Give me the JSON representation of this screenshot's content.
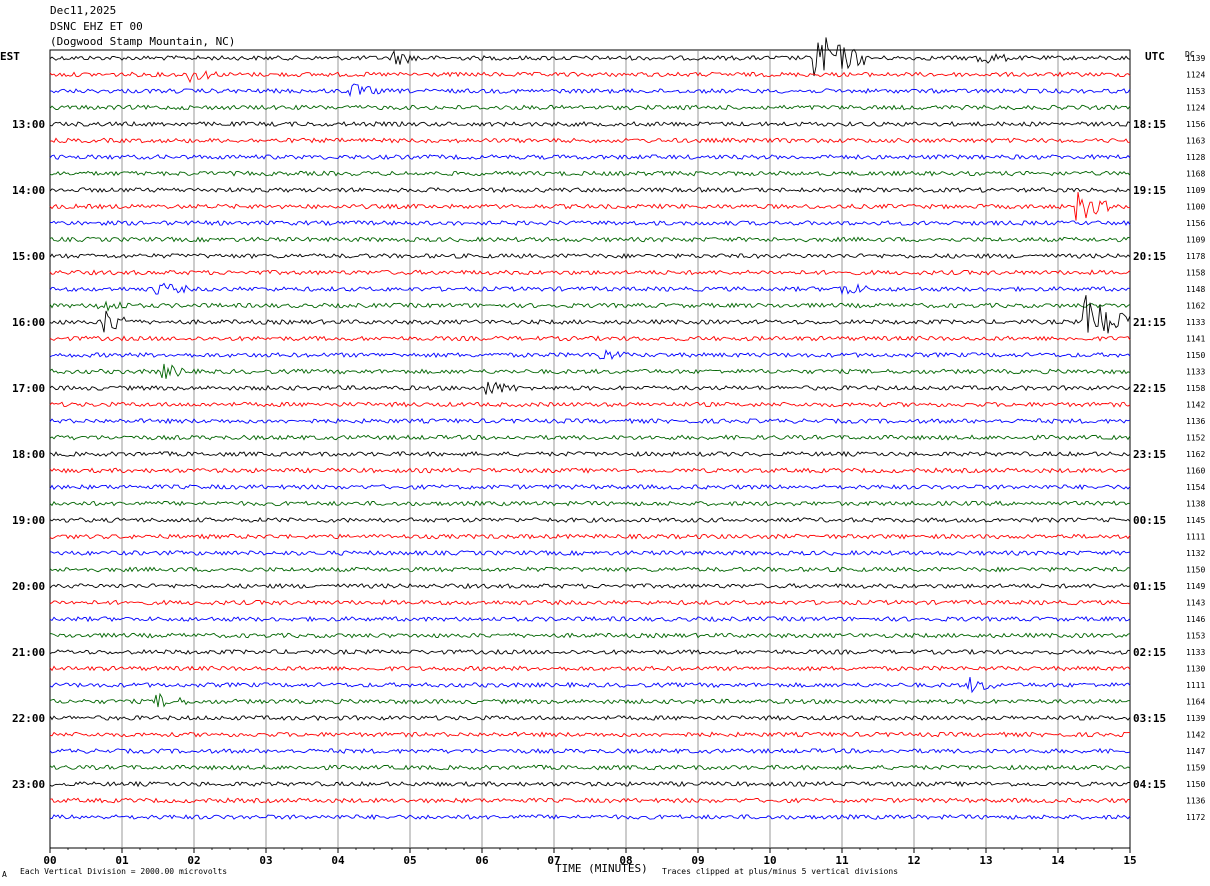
{
  "header": {
    "date": "Dec11,2025",
    "station": "DSNC EHZ ET 00",
    "location": "(Dogwood Stamp Mountain, NC)"
  },
  "left_timezone": "EST",
  "right_timezone": "UTC",
  "dc_label": "DC",
  "footer": {
    "scale_note": "Each Vertical Division = 2000.00 microvolts",
    "xlabel": "TIME (MINUTES)",
    "clip_note": "Traces clipped at plus/minus 5 vertical divisions",
    "corner_mark": "A"
  },
  "colors": {
    "trace_cycle": [
      "#000000",
      "#ff0000",
      "#0000ff",
      "#006400"
    ],
    "grid": "#7f7f7f"
  },
  "chart_data": {
    "type": "line",
    "title": "DSNC EHZ ET 00",
    "xlabel": "TIME (MINUTES)",
    "xlim": [
      0,
      15
    ],
    "x_ticks": [
      "00",
      "01",
      "02",
      "03",
      "04",
      "05",
      "06",
      "07",
      "08",
      "09",
      "10",
      "11",
      "12",
      "13",
      "14",
      "15"
    ],
    "left_hour_labels": [
      "13:00",
      "14:00",
      "15:00",
      "16:00",
      "17:00",
      "18:00",
      "19:00",
      "20:00",
      "21:00",
      "22:00",
      "23:00"
    ],
    "right_hour_labels": [
      "18:15",
      "19:15",
      "20:15",
      "21:15",
      "22:15",
      "23:15",
      "00:15",
      "01:15",
      "02:15",
      "03:15",
      "04:15"
    ],
    "dc_offsets": [
      1139,
      1124,
      1153,
      1124,
      1156,
      1163,
      1128,
      1168,
      1109,
      1100,
      1156,
      1109,
      1178,
      1158,
      1148,
      1162,
      1133,
      1141,
      1150,
      1133,
      1158,
      1142,
      1136,
      1152,
      1162,
      1160,
      1154,
      1138,
      1145,
      1111,
      1132,
      1150,
      1149,
      1143,
      1146,
      1153,
      1133,
      1130,
      1111,
      1164,
      1139,
      1142,
      1147,
      1159,
      1150,
      1136,
      1172
    ],
    "events": [
      {
        "trace": 0,
        "minute": 10.65,
        "amplitude": "large"
      },
      {
        "trace": 0,
        "minute": 4.8,
        "amplitude": "small"
      },
      {
        "trace": 0,
        "minute": 12.9,
        "amplitude": "small"
      },
      {
        "trace": 1,
        "minute": 1.95,
        "amplitude": "small"
      },
      {
        "trace": 2,
        "minute": 4.2,
        "amplitude": "small"
      },
      {
        "trace": 9,
        "minute": 14.3,
        "amplitude": "medium"
      },
      {
        "trace": 14,
        "minute": 1.5,
        "amplitude": "small"
      },
      {
        "trace": 14,
        "minute": 11.0,
        "amplitude": "small"
      },
      {
        "trace": 15,
        "minute": 0.7,
        "amplitude": "small"
      },
      {
        "trace": 16,
        "minute": 0.75,
        "amplitude": "medium"
      },
      {
        "trace": 16,
        "minute": 14.4,
        "amplitude": "large"
      },
      {
        "trace": 18,
        "minute": 7.6,
        "amplitude": "small"
      },
      {
        "trace": 19,
        "minute": 1.6,
        "amplitude": "small"
      },
      {
        "trace": 20,
        "minute": 6.1,
        "amplitude": "small"
      },
      {
        "trace": 39,
        "minute": 1.5,
        "amplitude": "small"
      },
      {
        "trace": 38,
        "minute": 12.8,
        "amplitude": "small"
      }
    ]
  }
}
